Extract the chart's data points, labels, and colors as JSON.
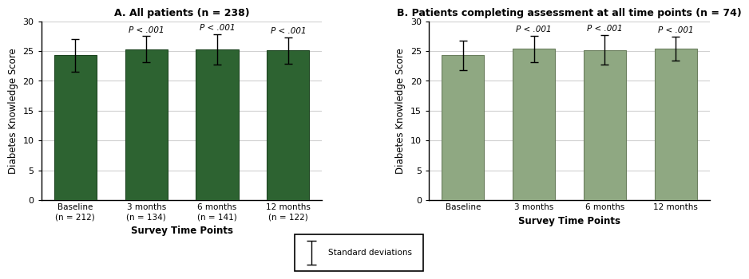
{
  "panel_A": {
    "title": "A. All patients (n = 238)",
    "categories": [
      "Baseline\n(n = 212)",
      "3 months\n(n = 134)",
      "6 months\n(n = 141)",
      "12 months\n(n = 122)"
    ],
    "values": [
      24.3,
      25.3,
      25.3,
      25.1
    ],
    "errors": [
      2.7,
      2.2,
      2.5,
      2.2
    ],
    "pvalues": [
      null,
      "P < .001",
      "P < .001",
      "P < .001"
    ],
    "bar_color": "#2d6331",
    "bar_edge_color": "#1e4522"
  },
  "panel_B": {
    "title": "B. Patients completing assessment at all time points (n = 74)",
    "categories": [
      "Baseline",
      "3 months",
      "6 months",
      "12 months"
    ],
    "values": [
      24.3,
      25.4,
      25.2,
      25.4
    ],
    "errors": [
      2.5,
      2.2,
      2.5,
      2.0
    ],
    "pvalues": [
      null,
      "P < .001",
      "P < .001",
      "P < .001"
    ],
    "bar_color": "#8fa882",
    "bar_edge_color": "#6b7f5e"
  },
  "ylabel": "Diabetes Knowledge Score",
  "xlabel": "Survey Time Points",
  "ylim": [
    0,
    30
  ],
  "yticks": [
    0,
    5,
    10,
    15,
    20,
    25,
    30
  ],
  "background_color": "#ffffff",
  "grid_color": "#d0d0d0"
}
